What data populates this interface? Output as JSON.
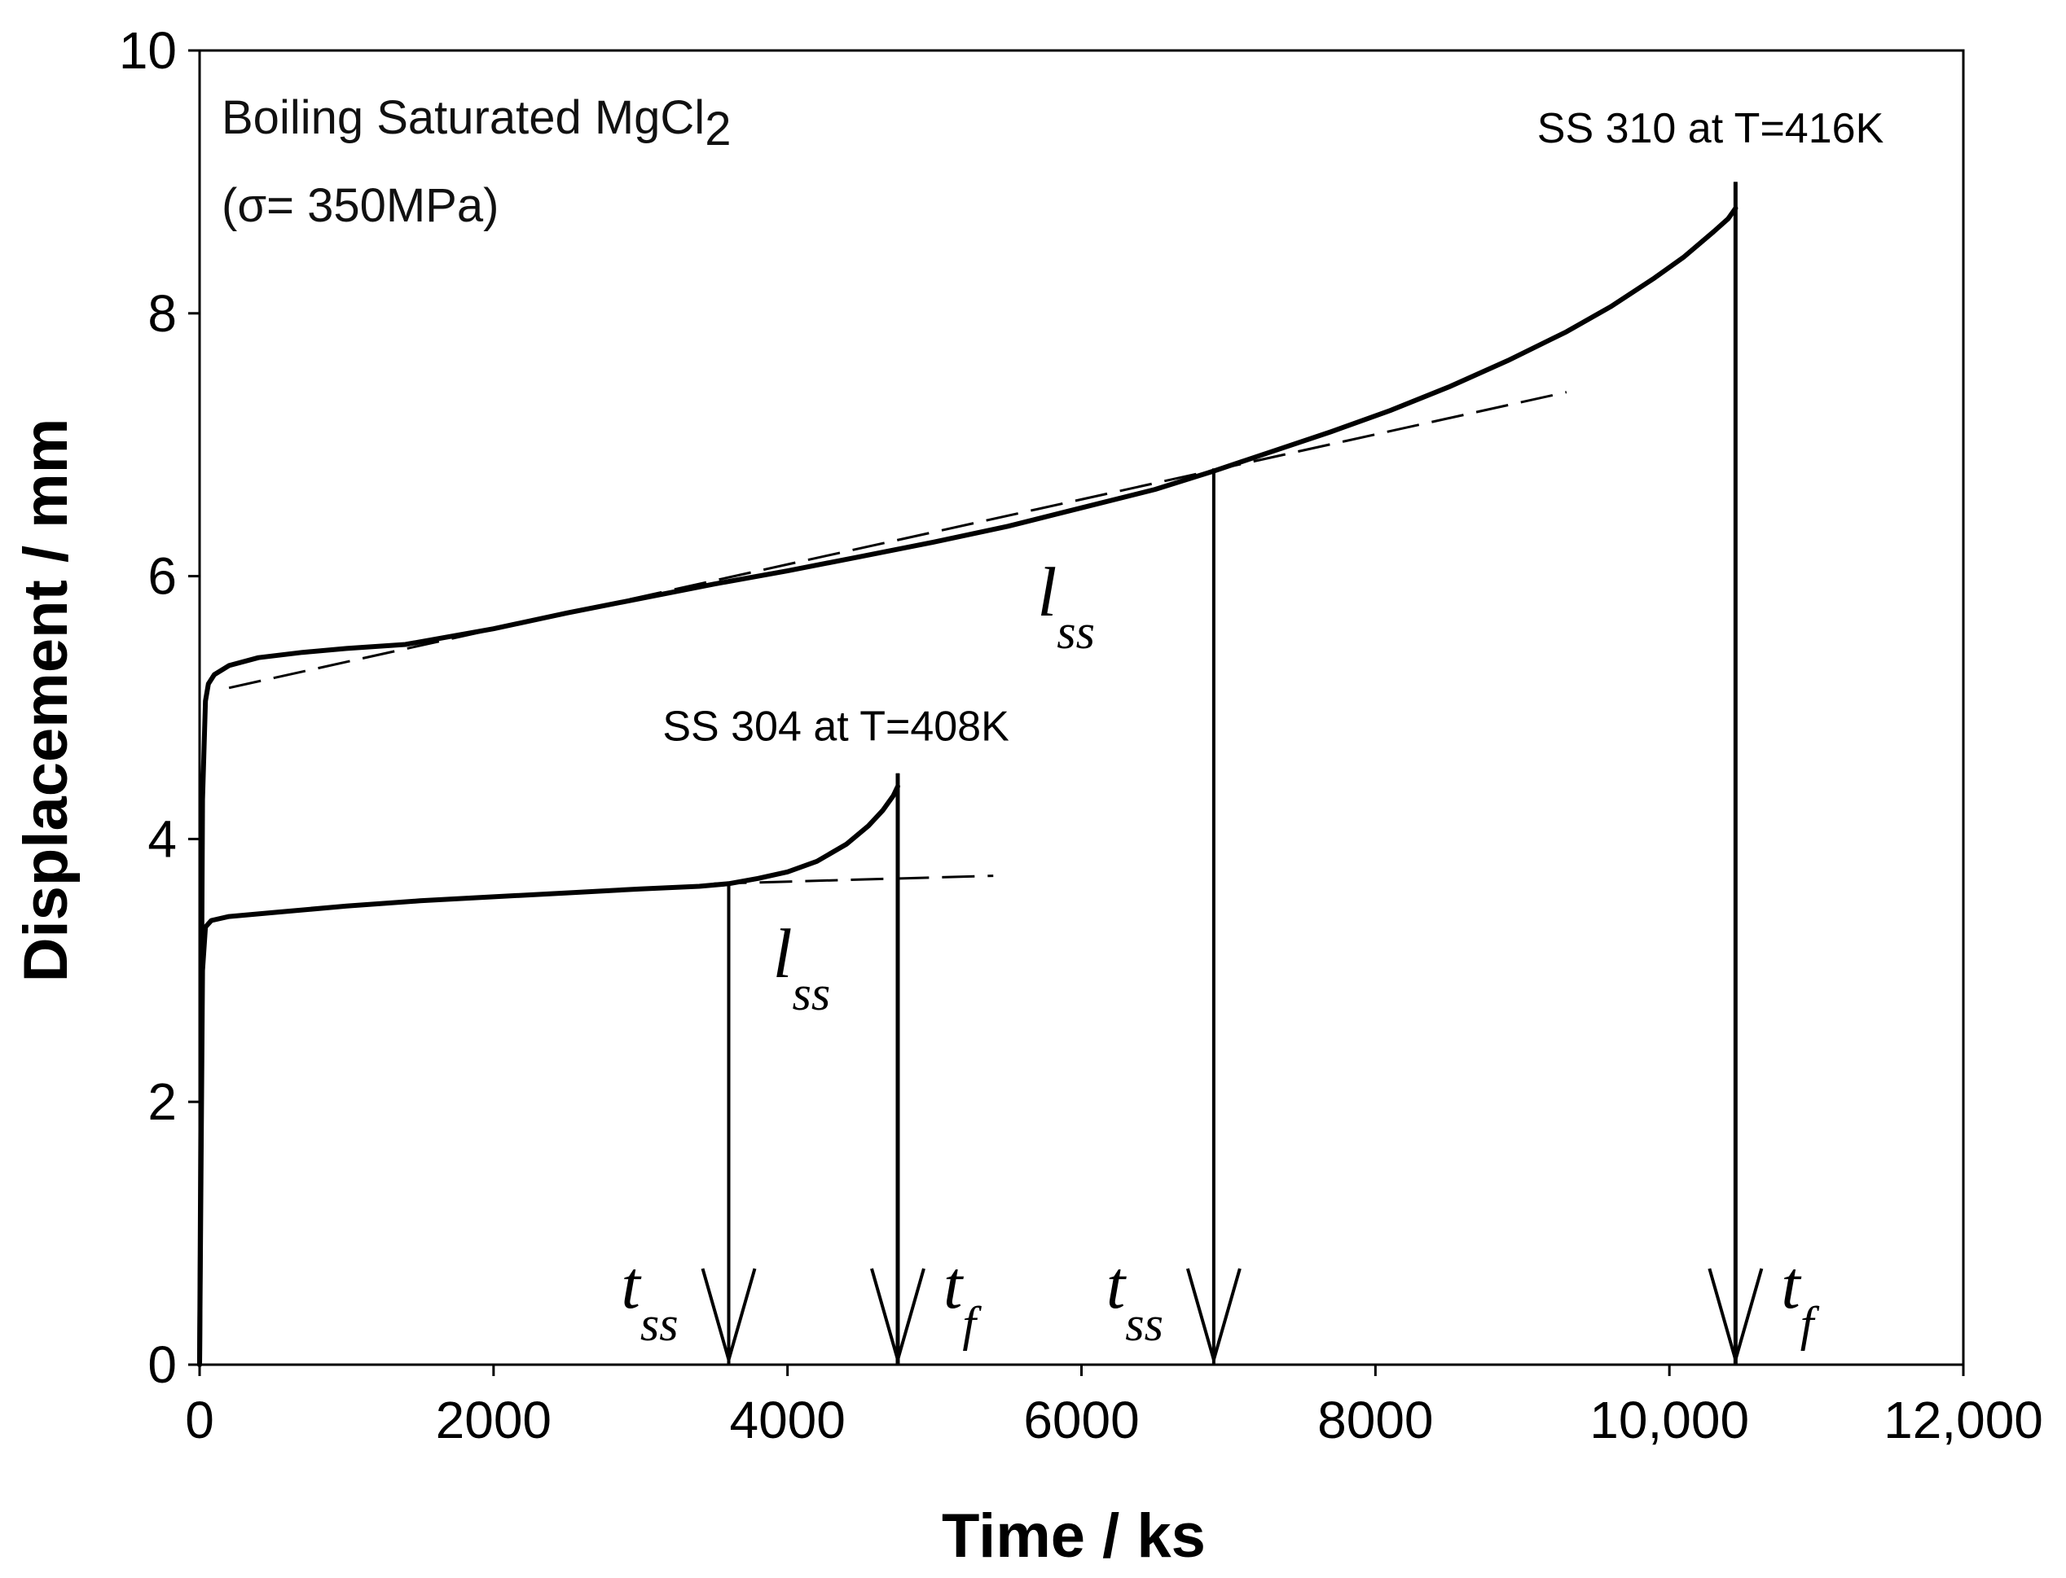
{
  "chart_data": {
    "type": "line",
    "title": "",
    "xlabel": "Time / ks",
    "ylabel": "Displacement / mm",
    "xlim": [
      0,
      12000
    ],
    "ylim": [
      0,
      10
    ],
    "grid": false,
    "x_ticks": [
      0,
      2000,
      4000,
      6000,
      8000,
      10000,
      12000
    ],
    "x_tick_labels": [
      "0",
      "2000",
      "4000",
      "6000",
      "8000",
      "10,000",
      "12,000"
    ],
    "y_ticks": [
      0,
      2,
      4,
      6,
      8,
      10
    ],
    "y_tick_labels": [
      "0",
      "2",
      "4",
      "6",
      "8",
      "10"
    ],
    "condition_lines": [
      "Boiling Saturated MgCl",
      "2",
      "(σ= 350MPa)"
    ],
    "series": [
      {
        "name": "SS 310 at T=416K",
        "x": [
          0,
          20,
          40,
          60,
          100,
          200,
          400,
          700,
          1000,
          1400,
          2000,
          2500,
          3000,
          3500,
          4000,
          4500,
          5000,
          5500,
          6000,
          6500,
          6900,
          7300,
          7700,
          8100,
          8500,
          8900,
          9300,
          9600,
          9900,
          10100,
          10300,
          10400,
          10450
        ],
        "y": [
          0,
          4.3,
          5.05,
          5.18,
          5.25,
          5.32,
          5.38,
          5.42,
          5.45,
          5.48,
          5.6,
          5.72,
          5.83,
          5.94,
          6.04,
          6.15,
          6.26,
          6.38,
          6.52,
          6.66,
          6.8,
          6.95,
          7.1,
          7.26,
          7.44,
          7.64,
          7.86,
          8.05,
          8.27,
          8.43,
          8.62,
          8.72,
          8.8
        ]
      },
      {
        "name": "SS 304 at T=408K",
        "x": [
          0,
          20,
          40,
          80,
          200,
          500,
          1000,
          1500,
          2000,
          2500,
          3000,
          3400,
          3600,
          3800,
          4000,
          4200,
          4400,
          4550,
          4650,
          4720,
          4750
        ],
        "y": [
          0,
          3.0,
          3.33,
          3.38,
          3.41,
          3.44,
          3.49,
          3.53,
          3.56,
          3.59,
          3.62,
          3.64,
          3.66,
          3.7,
          3.75,
          3.83,
          3.96,
          4.1,
          4.22,
          4.33,
          4.4
        ]
      }
    ],
    "steady_state_fits": [
      {
        "series": "SS 310 at T=416K",
        "x": [
          200,
          9300
        ],
        "y": [
          5.15,
          7.4
        ]
      },
      {
        "series": "SS 304 at T=408K",
        "x": [
          3500,
          5400
        ],
        "y": [
          3.66,
          3.72
        ]
      }
    ],
    "fracture_verticals": [
      {
        "series": "SS 310 at T=416K",
        "x": 10450,
        "y_top": 9.0
      },
      {
        "series": "SS 304 at T=408K",
        "x": 4750,
        "y_top": 4.5
      }
    ],
    "annotations": [
      {
        "text": "SS 310 at T=416K",
        "x": 9100,
        "y": 9.3
      },
      {
        "text": "SS 304 at T=408K",
        "x": 3150,
        "y": 4.75
      },
      {
        "text": "l",
        "sub": "ss",
        "x": 5700,
        "y": 5.7
      },
      {
        "text": "l",
        "sub": "ss",
        "x": 3900,
        "y": 2.95
      }
    ],
    "markers": [
      {
        "label": "t",
        "sub": "ss",
        "x": 3600,
        "y": 3.66,
        "side": "left"
      },
      {
        "label": "t",
        "sub": "f",
        "x": 4750,
        "y": 4.5,
        "side": "right"
      },
      {
        "label": "t",
        "sub": "ss",
        "x": 6900,
        "y": 6.82,
        "side": "left"
      },
      {
        "label": "t",
        "sub": "f",
        "x": 10450,
        "y": 9.0,
        "side": "right"
      }
    ]
  }
}
